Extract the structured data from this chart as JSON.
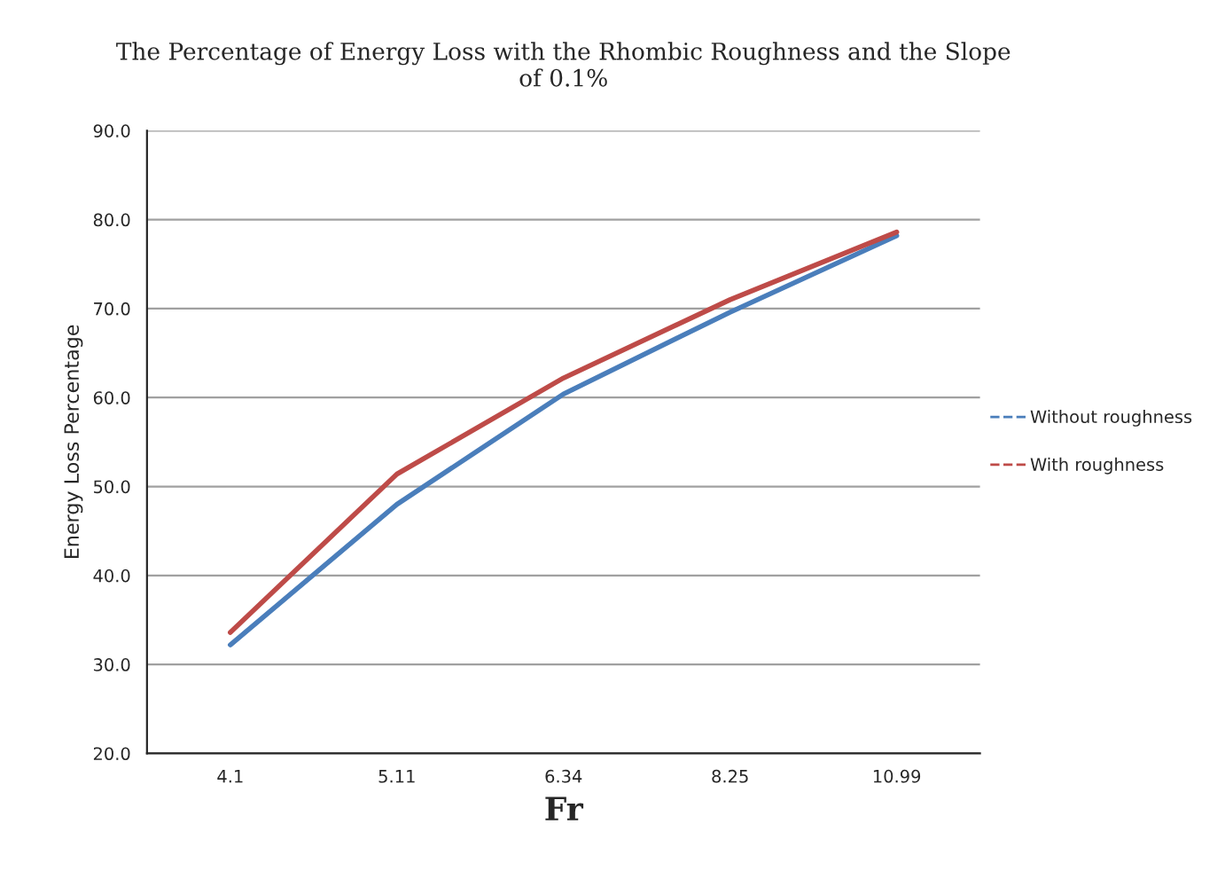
{
  "chart_data": {
    "type": "line",
    "title": "The Percentage of Energy Loss with the Rhombic Roughness and the Slope\nof 0.1%",
    "xlabel": "Fr",
    "ylabel": "Energy Loss Percentage",
    "categories": [
      "4.1",
      "5.11",
      "6.34",
      "8.25",
      "10.99"
    ],
    "series": [
      {
        "name": "Without roughness",
        "color": "#4a7ebb",
        "values": [
          32.2,
          48.0,
          60.4,
          69.6,
          78.2
        ]
      },
      {
        "name": "With roughness",
        "color": "#be4b48",
        "values": [
          33.6,
          51.4,
          62.2,
          71.0,
          78.6
        ]
      }
    ],
    "ylim": [
      20,
      90
    ],
    "yticks": [
      {
        "value": 20,
        "label": "20.0"
      },
      {
        "value": 30,
        "label": "30.0"
      },
      {
        "value": 40,
        "label": "40.0"
      },
      {
        "value": 50,
        "label": "50.0"
      },
      {
        "value": 60,
        "label": "60.0"
      },
      {
        "value": 70,
        "label": "70.0"
      },
      {
        "value": 80,
        "label": "80.0"
      },
      {
        "value": 90,
        "label": "90.0"
      }
    ],
    "grid": "y",
    "legend": "right",
    "marker": "none",
    "line_style": "solid"
  }
}
